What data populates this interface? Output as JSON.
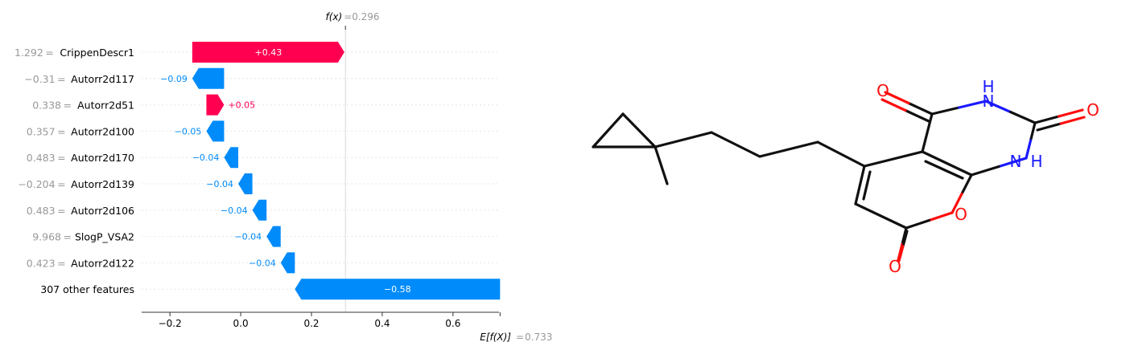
{
  "chart_data": {
    "type": "waterfall",
    "fx_label": "f(x)",
    "fx_value": "0.296",
    "ex_label": "E[f(X)]",
    "ex_value": "0.733",
    "fx": 0.296,
    "base": 0.733,
    "xlim": [
      -0.28,
      0.73
    ],
    "xticks": [
      -0.2,
      0.0,
      0.2,
      0.4,
      0.6
    ],
    "xtick_labels": [
      "−0.2",
      "0.0",
      "0.2",
      "0.4",
      "0.6"
    ],
    "pos_color": "#ff0051",
    "neg_color": "#008bfb",
    "features": [
      {
        "value_label": "1.292",
        "name": "CrippenDescr1",
        "shap": 0.43,
        "label": "+0.43"
      },
      {
        "value_label": "−0.31",
        "name": "Autorr2d117",
        "shap": -0.09,
        "label": "−0.09"
      },
      {
        "value_label": "0.338",
        "name": "Autorr2d51",
        "shap": 0.05,
        "label": "+0.05"
      },
      {
        "value_label": "0.357",
        "name": "Autorr2d100",
        "shap": -0.05,
        "label": "−0.05"
      },
      {
        "value_label": "0.483",
        "name": "Autorr2d170",
        "shap": -0.04,
        "label": "−0.04"
      },
      {
        "value_label": "−0.204",
        "name": "Autorr2d139",
        "shap": -0.04,
        "label": "−0.04"
      },
      {
        "value_label": "0.483",
        "name": "Autorr2d106",
        "shap": -0.04,
        "label": "−0.04"
      },
      {
        "value_label": "9.968",
        "name": "SlogP_VSA2",
        "shap": -0.04,
        "label": "−0.04"
      },
      {
        "value_label": "0.423",
        "name": "Autorr2d122",
        "shap": -0.04,
        "label": "−0.04"
      },
      {
        "value_label": "",
        "name": "307 other features",
        "shap": -0.58,
        "label": "−0.58"
      }
    ]
  },
  "molecule": {
    "atom_labels": [
      "O",
      "H",
      "N",
      "O",
      "N",
      "H",
      "O",
      "O"
    ],
    "colors": {
      "bond": "#111111",
      "oxygen": "#ff0d0d",
      "nitrogen": "#1a1aff"
    }
  }
}
